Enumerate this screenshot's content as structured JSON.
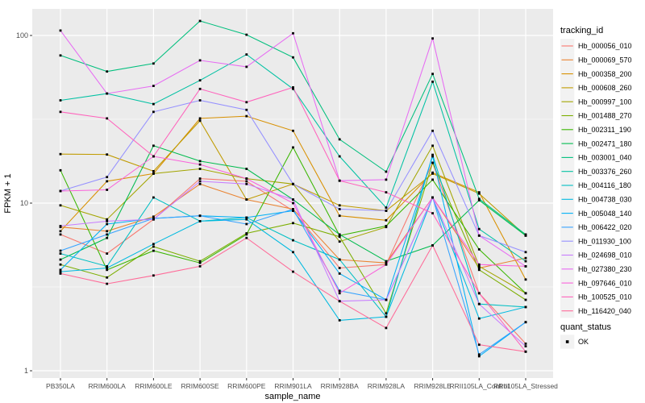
{
  "chart_data": {
    "type": "line",
    "title": "",
    "xlabel": "sample_name",
    "ylabel": "FPKM + 1",
    "y_scale": "log10",
    "y_ticks": [
      1,
      10,
      100
    ],
    "y_minor_breaks": [
      3.162,
      31.62
    ],
    "ylim": [
      1,
      130
    ],
    "grid": "on",
    "legend_position": "right",
    "panel_bg": "#EBEBEB",
    "grid_color": "#FFFFFF",
    "point_color": "#000000",
    "tick_color": "#333333",
    "tick_label_color": "#4D4D4D",
    "categories": [
      "PB350LA",
      "RRIM600LA",
      "RRIM600LE",
      "RRIM600SE",
      "RRIM600PE",
      "RRIM901LA",
      "RRIM928BA",
      "RRIM928LA",
      "RRIM928LE",
      "RRII105LA_Control",
      "RRII105LA_Stressed"
    ],
    "series": [
      {
        "name": "Hb_000056_010",
        "color": "#F8766D",
        "values": [
          6.5,
          5.0,
          8.0,
          14,
          13.5,
          9.0,
          4.1,
          4.3,
          17.4,
          2.9,
          1.45
        ]
      },
      {
        "name": "Hb_000069_570",
        "color": "#EA8331",
        "values": [
          7.2,
          6.8,
          8.3,
          13,
          10.5,
          9.2,
          4.6,
          4.4,
          10.8,
          4.1,
          4.7
        ]
      },
      {
        "name": "Hb_000358_200",
        "color": "#D89000",
        "values": [
          6.8,
          13.5,
          15.0,
          32,
          33,
          27,
          8.4,
          7.9,
          15.2,
          11.6,
          3.5
        ]
      },
      {
        "name": "Hb_000608_260",
        "color": "#C09B00",
        "values": [
          19.6,
          19.5,
          15.5,
          31,
          10.5,
          13.0,
          9.7,
          9.0,
          15.0,
          11.4,
          6.4
        ]
      },
      {
        "name": "Hb_000997_100",
        "color": "#A3A500",
        "values": [
          9.7,
          8.0,
          15.0,
          16,
          14.0,
          13.0,
          5.9,
          7.2,
          22,
          4.2,
          2.9
        ]
      },
      {
        "name": "Hb_001488_270",
        "color": "#7CAE00",
        "values": [
          4.3,
          3.6,
          5.5,
          4.5,
          6.6,
          7.6,
          6.3,
          2.2,
          17.4,
          4.0,
          2.65
        ]
      },
      {
        "name": "Hb_002311_190",
        "color": "#39B600",
        "values": [
          15.7,
          4.0,
          5.2,
          4.4,
          6.5,
          21.5,
          6.4,
          7.3,
          13.8,
          5.3,
          2.9
        ]
      },
      {
        "name": "Hb_002471_180",
        "color": "#00BB4E",
        "values": [
          4.6,
          6.2,
          22,
          17.8,
          16,
          10.5,
          6.5,
          4.5,
          5.6,
          10.4,
          6.4
        ]
      },
      {
        "name": "Hb_003001_040",
        "color": "#00BF7D",
        "values": [
          76,
          61,
          68,
          122,
          101,
          74,
          24,
          15.4,
          59,
          10.6,
          6.5
        ]
      },
      {
        "name": "Hb_003376_260",
        "color": "#00C1A3",
        "values": [
          41,
          45,
          39,
          54,
          77,
          48,
          19,
          9.4,
          53,
          7.0,
          4.5
        ]
      },
      {
        "name": "Hb_004116_180",
        "color": "#00BFC4",
        "values": [
          5.0,
          4.2,
          10.8,
          7.8,
          8.2,
          6.0,
          4.6,
          2.1,
          19.4,
          2.5,
          2.4
        ]
      },
      {
        "name": "Hb_004738_030",
        "color": "#00BAE0",
        "values": [
          3.9,
          4.1,
          5.7,
          7.8,
          8.0,
          5.1,
          2.0,
          2.1,
          10.8,
          2.05,
          2.4
        ]
      },
      {
        "name": "Hb_005048_140",
        "color": "#00B0F6",
        "values": [
          4.0,
          7.5,
          8.1,
          8.4,
          8.2,
          9.0,
          3.8,
          2.65,
          19.0,
          1.22,
          1.95
        ]
      },
      {
        "name": "Hb_006422_020",
        "color": "#35A2FF",
        "values": [
          5.2,
          6.5,
          8.1,
          8.4,
          7.5,
          9.2,
          3.0,
          2.65,
          10.8,
          1.25,
          1.95
        ]
      },
      {
        "name": "Hb_011930_100",
        "color": "#9590FF",
        "values": [
          11.8,
          14.3,
          35,
          41,
          36,
          13.0,
          9.2,
          9.0,
          27,
          6.4,
          5.1
        ]
      },
      {
        "name": "Hb_024698_010",
        "color": "#C77CFF",
        "values": [
          7.3,
          7.8,
          8.0,
          13.5,
          13.0,
          10.5,
          2.6,
          2.65,
          10.8,
          2.5,
          1.4
        ]
      },
      {
        "name": "Hb_027380_230",
        "color": "#E76BF3",
        "values": [
          107,
          45,
          50,
          71,
          65,
          103,
          13.6,
          13.8,
          96,
          6.4,
          4.2
        ]
      },
      {
        "name": "Hb_097646_010",
        "color": "#FA62DB",
        "values": [
          11.8,
          12.0,
          19.0,
          17.0,
          14.0,
          10.0,
          2.9,
          4.3,
          10.8,
          4.3,
          4.2
        ]
      },
      {
        "name": "Hb_100525_010",
        "color": "#FF62BC",
        "values": [
          35,
          32,
          19,
          48,
          40,
          49,
          13.6,
          11.6,
          8.7,
          2.9,
          1.3
        ]
      },
      {
        "name": "Hb_116420_040",
        "color": "#FF6A98",
        "values": [
          3.8,
          3.3,
          3.7,
          4.2,
          6.2,
          3.9,
          2.6,
          1.8,
          5.6,
          1.43,
          1.3
        ]
      }
    ],
    "legend": {
      "color_title": "tracking_id",
      "shape_title": "quant_status",
      "shape_items": [
        {
          "label": "OK",
          "shape": "filled-square",
          "color": "#000000"
        }
      ],
      "key_bg": "#F2F2F2"
    }
  }
}
